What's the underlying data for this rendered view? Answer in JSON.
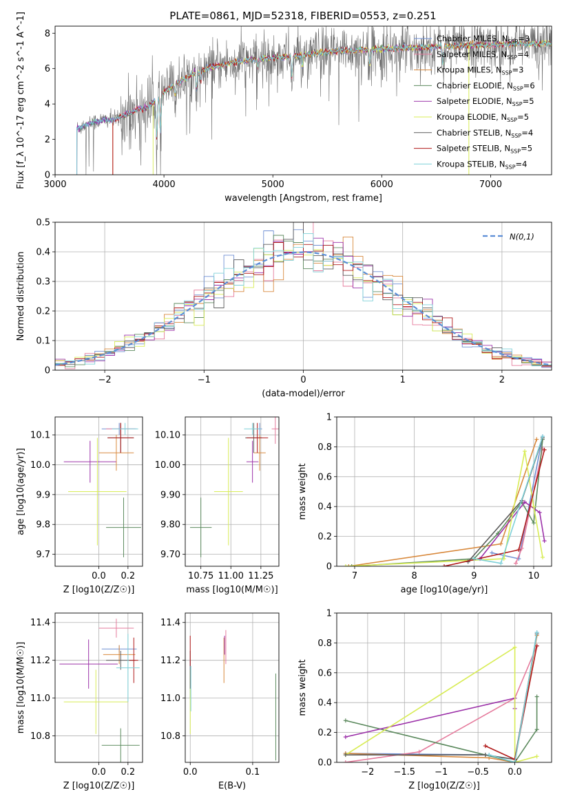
{
  "figure_title": "PLATE=0861, MJD=52318, FIBERID=0553, z=0.251",
  "models": [
    {
      "name": "Chabrier MILES",
      "nssp": 3,
      "color": "#6f8fd3"
    },
    {
      "name": "Salpeter MILES",
      "nssp": 4,
      "color": "#e5799b"
    },
    {
      "name": "Kroupa MILES",
      "nssp": 3,
      "color": "#d8883b"
    },
    {
      "name": "Chabrier ELODIE",
      "nssp": 6,
      "color": "#5c8a5e"
    },
    {
      "name": "Salpeter ELODIE",
      "nssp": 5,
      "color": "#9b30a8"
    },
    {
      "name": "Kroupa ELODIE",
      "nssp": 5,
      "color": "#d8ec55"
    },
    {
      "name": "Chabrier STELIB",
      "nssp": 4,
      "color": "#5a5a5a"
    },
    {
      "name": "Salpeter STELIB",
      "nssp": 5,
      "color": "#b01818"
    },
    {
      "name": "Kroupa STELIB",
      "nssp": 4,
      "color": "#7dd0d8"
    }
  ],
  "chart_data": [
    {
      "id": "spectrum",
      "type": "line",
      "xlabel": "wavelength [Angstrom, rest frame]",
      "ylabel": "Flux [f_λ 10^-17 erg cm^-2 s^-1 A^-1]",
      "xlim": [
        3000,
        7560
      ],
      "ylim": [
        0,
        8.4
      ],
      "xticks": [
        3000,
        4000,
        5000,
        6000,
        7000
      ],
      "yticks": [
        0,
        2,
        4,
        6,
        8
      ],
      "grid": false,
      "legend": "top-right",
      "data_range": [
        3200,
        7560
      ],
      "continuum": [
        [
          3200,
          2.6
        ],
        [
          3300,
          2.9
        ],
        [
          3450,
          3.1
        ],
        [
          3550,
          3.1
        ],
        [
          3650,
          3.4
        ],
        [
          3750,
          3.7
        ],
        [
          3850,
          3.8
        ],
        [
          3950,
          4.4
        ],
        [
          4050,
          4.9
        ],
        [
          4150,
          5.3
        ],
        [
          4300,
          5.8
        ],
        [
          4450,
          6.1
        ],
        [
          4600,
          6.3
        ],
        [
          4800,
          6.5
        ],
        [
          5000,
          6.6
        ],
        [
          5300,
          6.8
        ],
        [
          5600,
          7.0
        ],
        [
          6000,
          7.1
        ],
        [
          6400,
          7.2
        ],
        [
          6800,
          7.3
        ],
        [
          7200,
          7.4
        ],
        [
          7560,
          7.4
        ]
      ],
      "dips": [
        [
          3934,
          3.0
        ],
        [
          3968,
          2.6
        ],
        [
          4102,
          0.8
        ],
        [
          4300,
          1.2
        ],
        [
          4340,
          0.7
        ],
        [
          4861,
          0.6
        ],
        [
          5175,
          1.6
        ],
        [
          5270,
          0.8
        ],
        [
          5890,
          1.1
        ],
        [
          6563,
          1.2
        ]
      ],
      "model_start": [
        3200,
        3530,
        3530,
        3200,
        3200,
        3900,
        3200,
        3530,
        3200
      ]
    },
    {
      "id": "residuals",
      "type": "bar",
      "xlabel": "(data-model)/error",
      "ylabel": "Normed distribution",
      "xlim": [
        -2.5,
        2.5
      ],
      "ylim": [
        0,
        0.5
      ],
      "xticks": [
        -2,
        -1,
        0,
        1,
        2
      ],
      "yticks": [
        0.0,
        0.1,
        0.2,
        0.3,
        0.4,
        0.5
      ],
      "grid": true,
      "bin_width": 0.1,
      "legend": "top-right",
      "legend_label": "N(0,1)",
      "reference_curve": "gaussian(0,1)"
    },
    {
      "id": "age_vs_Z",
      "type": "scatter",
      "xlabel": "Z [log10(Z/Z☉)]",
      "ylabel": "age  [log10(age/yr)]",
      "xlim": [
        -0.3,
        0.3
      ],
      "ylim": [
        9.66,
        10.16
      ],
      "xticks": [
        0.0,
        0.2
      ],
      "yticks": [
        9.7,
        9.8,
        9.9,
        10.0,
        10.1
      ],
      "grid": true,
      "points": [
        {
          "m": 0,
          "x": 0.14,
          "y": 10.12,
          "xe": 0.12,
          "ye": 0.02
        },
        {
          "m": 1,
          "x": 0.15,
          "y": 10.12,
          "xe": 0.1,
          "ye": 0.02
        },
        {
          "m": 2,
          "x": 0.12,
          "y": 10.04,
          "xe": 0.12,
          "ye": 0.06
        },
        {
          "m": 3,
          "x": 0.17,
          "y": 9.79,
          "xe": 0.12,
          "ye": 0.1
        },
        {
          "m": 4,
          "x": -0.06,
          "y": 10.01,
          "xe": 0.18,
          "ye": 0.07
        },
        {
          "m": 5,
          "x": -0.01,
          "y": 9.91,
          "xe": 0.2,
          "ye": 0.18
        },
        {
          "m": 6,
          "x": 0.15,
          "y": 10.09,
          "xe": 0.09,
          "ye": 0.05
        },
        {
          "m": 7,
          "x": 0.15,
          "y": 10.09,
          "xe": 0.09,
          "ye": 0.05
        },
        {
          "m": 8,
          "x": 0.18,
          "y": 10.12,
          "xe": 0.09,
          "ye": 0.02
        }
      ]
    },
    {
      "id": "age_vs_mass",
      "type": "scatter",
      "xlabel": "mass [log10(M/M☉)]",
      "ylabel": "",
      "xlim": [
        10.62,
        11.4
      ],
      "ylim": [
        9.66,
        10.16
      ],
      "xticks": [
        10.75,
        11.0,
        11.25
      ],
      "yticks": [
        9.7,
        9.8,
        9.9,
        10.0,
        10.1
      ],
      "grid": true,
      "points": [
        {
          "m": 0,
          "x": 11.24,
          "y": 10.12,
          "xe": 0.02,
          "ye": 0.02
        },
        {
          "m": 1,
          "x": 11.37,
          "y": 10.12,
          "xe": 0.03,
          "ye": 0.05
        },
        {
          "m": 2,
          "x": 11.24,
          "y": 10.04,
          "xe": 0.05,
          "ye": 0.06
        },
        {
          "m": 3,
          "x": 10.75,
          "y": 9.79,
          "xe": 0.09,
          "ye": 0.1
        },
        {
          "m": 4,
          "x": 11.18,
          "y": 10.01,
          "xe": 0.05,
          "ye": 0.07
        },
        {
          "m": 5,
          "x": 10.98,
          "y": 9.91,
          "xe": 0.12,
          "ye": 0.18
        },
        {
          "m": 6,
          "x": 11.19,
          "y": 10.09,
          "xe": 0.07,
          "ye": 0.05
        },
        {
          "m": 7,
          "x": 11.22,
          "y": 10.09,
          "xe": 0.09,
          "ye": 0.05
        },
        {
          "m": 8,
          "x": 11.18,
          "y": 10.12,
          "xe": 0.07,
          "ye": 0.02
        }
      ]
    },
    {
      "id": "weight_vs_age",
      "type": "line",
      "xlabel": "age  [log10(age/yr)]",
      "ylabel": "mass weight",
      "xlim": [
        6.7,
        10.3
      ],
      "ylim": [
        0,
        1
      ],
      "xticks": [
        7,
        8,
        9,
        10
      ],
      "yticks": [
        0.0,
        0.2,
        0.4,
        0.6,
        0.8,
        1.0
      ],
      "grid": true,
      "series": [
        {
          "m": 0,
          "points": [
            [
              9.3,
              0.09
            ],
            [
              9.75,
              0.05
            ],
            [
              10.15,
              0.87
            ]
          ]
        },
        {
          "m": 1,
          "points": [
            [
              9.7,
              0.02
            ],
            [
              9.8,
              0.12
            ],
            [
              10.15,
              0.79
            ]
          ]
        },
        {
          "m": 2,
          "points": [
            [
              6.9,
              0.0
            ],
            [
              9.45,
              0.15
            ],
            [
              10.05,
              0.85
            ]
          ]
        },
        {
          "m": 3,
          "points": [
            [
              6.95,
              0.0
            ],
            [
              9.0,
              0.05
            ],
            [
              9.4,
              0.22
            ],
            [
              9.8,
              0.43
            ],
            [
              10.0,
              0.29
            ],
            [
              10.15,
              0.85
            ]
          ]
        },
        {
          "m": 4,
          "points": [
            [
              9.1,
              0.05
            ],
            [
              9.85,
              0.43
            ],
            [
              10.1,
              0.36
            ],
            [
              10.18,
              0.17
            ]
          ]
        },
        {
          "m": 5,
          "points": [
            [
              6.85,
              0.0
            ],
            [
              9.5,
              0.05
            ],
            [
              9.85,
              0.77
            ],
            [
              10.0,
              0.4
            ],
            [
              10.15,
              0.06
            ]
          ]
        },
        {
          "m": 6,
          "points": [
            [
              8.9,
              0.03
            ],
            [
              9.8,
              0.44
            ],
            [
              10.15,
              0.86
            ]
          ]
        },
        {
          "m": 7,
          "points": [
            [
              8.5,
              0.0
            ],
            [
              9.75,
              0.11
            ],
            [
              10.18,
              0.78
            ]
          ]
        },
        {
          "m": 8,
          "points": [
            [
              9.0,
              0.05
            ],
            [
              9.45,
              0.02
            ],
            [
              10.15,
              0.87
            ]
          ]
        }
      ]
    },
    {
      "id": "mass_vs_Z",
      "type": "scatter",
      "xlabel": "Z [log10(Z/Z☉)]",
      "ylabel": "mass [log10(M/M☉)]",
      "xlim": [
        -0.3,
        0.3
      ],
      "ylim": [
        10.66,
        11.45
      ],
      "xticks": [
        0.0,
        0.2
      ],
      "yticks": [
        10.8,
        11.0,
        11.2,
        11.4
      ],
      "grid": true,
      "points": [
        {
          "m": 0,
          "x": 0.14,
          "y": 11.26,
          "xe": 0.12,
          "ye": 0.02
        },
        {
          "m": 1,
          "x": 0.12,
          "y": 11.37,
          "xe": 0.12,
          "ye": 0.05
        },
        {
          "m": 2,
          "x": 0.14,
          "y": 11.23,
          "xe": 0.11,
          "ye": 0.05
        },
        {
          "m": 3,
          "x": 0.15,
          "y": 10.75,
          "xe": 0.13,
          "ye": 0.09
        },
        {
          "m": 4,
          "x": -0.07,
          "y": 11.18,
          "xe": 0.2,
          "ye": 0.13
        },
        {
          "m": 5,
          "x": -0.02,
          "y": 10.98,
          "xe": 0.22,
          "ye": 0.17
        },
        {
          "m": 6,
          "x": 0.15,
          "y": 11.2,
          "xe": 0.1,
          "ye": 0.05
        },
        {
          "m": 7,
          "x": 0.24,
          "y": 11.2,
          "xe": 0.03,
          "ye": 0.12
        },
        {
          "m": 8,
          "x": 0.2,
          "y": 11.16,
          "xe": 0.08,
          "ye": 0.18
        }
      ]
    },
    {
      "id": "mass_vs_ebv",
      "type": "scatter",
      "xlabel": "E(B-V)",
      "ylabel": "",
      "xlim": [
        -0.008,
        0.142
      ],
      "ylim": [
        10.66,
        11.45
      ],
      "xticks": [
        0.0,
        0.1
      ],
      "yticks": [
        10.8,
        11.0,
        11.2,
        11.4
      ],
      "grid": true,
      "points": [
        {
          "m": 0,
          "x": 0.0,
          "y": 11.1,
          "xe": 0,
          "ye": 0.1
        },
        {
          "m": 1,
          "x": 0.057,
          "y": 11.27,
          "xe": 0,
          "ye": 0.09
        },
        {
          "m": 2,
          "x": 0.054,
          "y": 11.2,
          "xe": 0,
          "ye": 0.12
        },
        {
          "m": 3,
          "x": 0.137,
          "y": 10.9,
          "xe": 0,
          "ye": 0.23
        },
        {
          "m": 4,
          "x": 0.055,
          "y": 11.28,
          "xe": 0,
          "ye": 0.05
        },
        {
          "m": 5,
          "x": 0.0,
          "y": 10.98,
          "xe": 0,
          "ye": 0.17
        },
        {
          "m": 6,
          "x": 0.0,
          "y": 11.15,
          "xe": 0,
          "ye": 0.1
        },
        {
          "m": 7,
          "x": 0.0,
          "y": 11.25,
          "xe": 0,
          "ye": 0.08
        },
        {
          "m": 8,
          "x": 0.001,
          "y": 11.05,
          "xe": 0,
          "ye": 0.12
        }
      ]
    },
    {
      "id": "weight_vs_Z",
      "type": "line",
      "xlabel": "Z [log10(Z/Z☉)]",
      "ylabel": "mass weight",
      "xlim": [
        -2.42,
        0.5
      ],
      "ylim": [
        0,
        1
      ],
      "xticks": [
        -2.0,
        -1.5,
        -1.0,
        -0.5,
        0.0
      ],
      "yticks": [
        0.0,
        0.2,
        0.4,
        0.6,
        0.8,
        1.0
      ],
      "grid": true,
      "series": [
        {
          "m": 0,
          "points": [
            [
              -2.3,
              0.06
            ],
            [
              -0.35,
              0.05
            ],
            [
              0.0,
              0.0
            ],
            [
              0.3,
              0.87
            ]
          ]
        },
        {
          "m": 1,
          "points": [
            [
              -2.3,
              0.0
            ],
            [
              -1.3,
              0.07
            ],
            [
              0.0,
              0.43
            ],
            [
              0.3,
              0.78
            ]
          ]
        },
        {
          "m": 2,
          "points": [
            [
              -2.3,
              0.06
            ],
            [
              -0.35,
              0.03
            ],
            [
              0.0,
              0.0
            ],
            [
              0.3,
              0.85
            ]
          ]
        },
        {
          "m": 3,
          "points": [
            [
              -2.3,
              0.28
            ],
            [
              -0.4,
              0.05
            ],
            [
              0.0,
              0.0
            ],
            [
              0.3,
              0.22
            ],
            [
              0.3,
              0.44
            ]
          ]
        },
        {
          "m": 4,
          "points": [
            [
              -2.3,
              0.17
            ],
            [
              0.0,
              0.43
            ],
            [
              0.0,
              0.36
            ]
          ]
        },
        {
          "m": 5,
          "points": [
            [
              -2.3,
              0.05
            ],
            [
              0.0,
              0.77
            ],
            [
              0.0,
              0.0
            ],
            [
              0.3,
              0.04
            ]
          ]
        },
        {
          "m": 6,
          "points": [
            [
              -2.3,
              0.05
            ],
            [
              -0.4,
              0.05
            ],
            [
              0.0,
              0.02
            ],
            [
              0.3,
              0.86
            ]
          ]
        },
        {
          "m": 7,
          "points": [
            [
              -0.4,
              0.11
            ],
            [
              0.0,
              0.02
            ],
            [
              0.3,
              0.78
            ]
          ]
        },
        {
          "m": 8,
          "points": [
            [
              -0.35,
              0.05
            ],
            [
              0.0,
              0.0
            ],
            [
              0.3,
              0.87
            ]
          ]
        }
      ]
    }
  ]
}
